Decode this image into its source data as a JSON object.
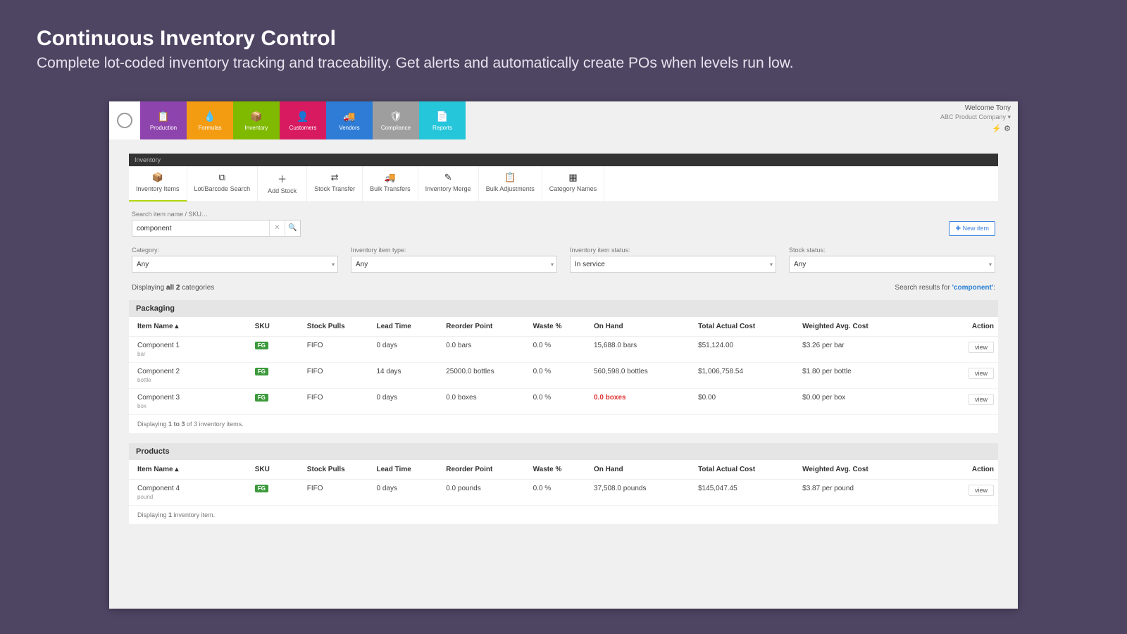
{
  "hero": {
    "title": "Continuous Inventory Control",
    "subtitle": "Complete lot-coded inventory tracking and traceability. Get alerts and automatically create POs when levels run low."
  },
  "user": {
    "welcome": "Welcome Tony",
    "company": "ABC Product Company ▾"
  },
  "nav": [
    {
      "label": "Production",
      "color": "#8e44ad",
      "name": "nav-production"
    },
    {
      "label": "Formulas",
      "color": "#f39c12",
      "name": "nav-formulas"
    },
    {
      "label": "Inventory",
      "color": "#7fba00",
      "name": "nav-inventory"
    },
    {
      "label": "Customers",
      "color": "#d81b60",
      "name": "nav-customers"
    },
    {
      "label": "Vendors",
      "color": "#2e7cd6",
      "name": "nav-vendors"
    },
    {
      "label": "Compliance",
      "color": "#9e9e9e",
      "name": "nav-compliance"
    },
    {
      "label": "Reports",
      "color": "#26c6da",
      "name": "nav-reports"
    }
  ],
  "nav_icons": [
    "📋",
    "💧",
    "📦",
    "👤",
    "🚚",
    "🛡",
    "📄"
  ],
  "crumb": "Inventory",
  "subnav": [
    {
      "label": "Inventory Items",
      "icon": "📦",
      "active": true,
      "name": "sub-inventory-items"
    },
    {
      "label": "Lot/Barcode Search",
      "icon": "⧉",
      "active": false,
      "name": "sub-lot-search"
    },
    {
      "label": "Add Stock",
      "icon": "＋",
      "active": false,
      "name": "sub-add-stock"
    },
    {
      "label": "Stock Transfer",
      "icon": "⇄",
      "active": false,
      "name": "sub-stock-transfer"
    },
    {
      "label": "Bulk Transfers",
      "icon": "🚚",
      "active": false,
      "name": "sub-bulk-transfers"
    },
    {
      "label": "Inventory Merge",
      "icon": "✎",
      "active": false,
      "name": "sub-inventory-merge"
    },
    {
      "label": "Bulk Adjustments",
      "icon": "📋",
      "active": false,
      "name": "sub-bulk-adjustments"
    },
    {
      "label": "Category Names",
      "icon": "▦",
      "active": false,
      "name": "sub-category-names"
    }
  ],
  "search": {
    "label": "Search item name / SKU…",
    "value": "component"
  },
  "new_item_label": "New item",
  "filters": {
    "category": {
      "label": "Category:",
      "value": "Any"
    },
    "itemtype": {
      "label": "Inventory item type:",
      "value": "Any"
    },
    "status": {
      "label": "Inventory item status:",
      "value": "In service"
    },
    "stock": {
      "label": "Stock status:",
      "value": "Any"
    }
  },
  "meta": {
    "displaying_prefix": "Displaying ",
    "all_n": "all 2",
    "displaying_suffix": " categories",
    "results_prefix": "Search results for ",
    "term": "'component'",
    "results_suffix": ":"
  },
  "columns": [
    "Item Name ▴",
    "SKU",
    "Stock Pulls",
    "Lead Time",
    "Reorder Point",
    "Waste %",
    "On Hand",
    "Total Actual Cost",
    "Weighted Avg. Cost",
    "Action"
  ],
  "sections": [
    {
      "title": "Packaging",
      "rows": [
        {
          "name": "Component 1",
          "unit": "bar",
          "badge": "FG",
          "sku": "",
          "pulls": "FIFO",
          "lead": "0 days",
          "reorder": "0.0 bars",
          "waste": "0.0 %",
          "onhand": "15,688.0 bars",
          "onhand_red": false,
          "cost": "$51,124.00",
          "avg": "$3.26 per bar"
        },
        {
          "name": "Component 2",
          "unit": "bottle",
          "badge": "FG",
          "sku": "",
          "pulls": "FIFO",
          "lead": "14 days",
          "reorder": "25000.0 bottles",
          "waste": "0.0 %",
          "onhand": "560,598.0 bottles",
          "onhand_red": false,
          "cost": "$1,006,758.54",
          "avg": "$1.80 per bottle"
        },
        {
          "name": "Component 3",
          "unit": "box",
          "badge": "FG",
          "sku": "",
          "pulls": "FIFO",
          "lead": "0 days",
          "reorder": "0.0 boxes",
          "waste": "0.0 %",
          "onhand": "0.0 boxes",
          "onhand_red": true,
          "cost": "$0.00",
          "avg": "$0.00 per box"
        }
      ],
      "footer_a": "Displaying ",
      "footer_b": "1 to 3",
      "footer_c": " of 3 inventory items."
    },
    {
      "title": "Products",
      "rows": [
        {
          "name": "Component 4",
          "unit": "pound",
          "badge": "FG",
          "sku": "",
          "pulls": "FIFO",
          "lead": "0 days",
          "reorder": "0.0 pounds",
          "waste": "0.0 %",
          "onhand": "37,508.0 pounds",
          "onhand_red": false,
          "cost": "$145,047.45",
          "avg": "$3.87 per pound"
        }
      ],
      "footer_a": "Displaying ",
      "footer_b": "1",
      "footer_c": " inventory item."
    }
  ],
  "view_label": "view",
  "col_widths": [
    "14%",
    "6%",
    "8%",
    "8%",
    "10%",
    "7%",
    "12%",
    "12%",
    "14%",
    "9%"
  ]
}
